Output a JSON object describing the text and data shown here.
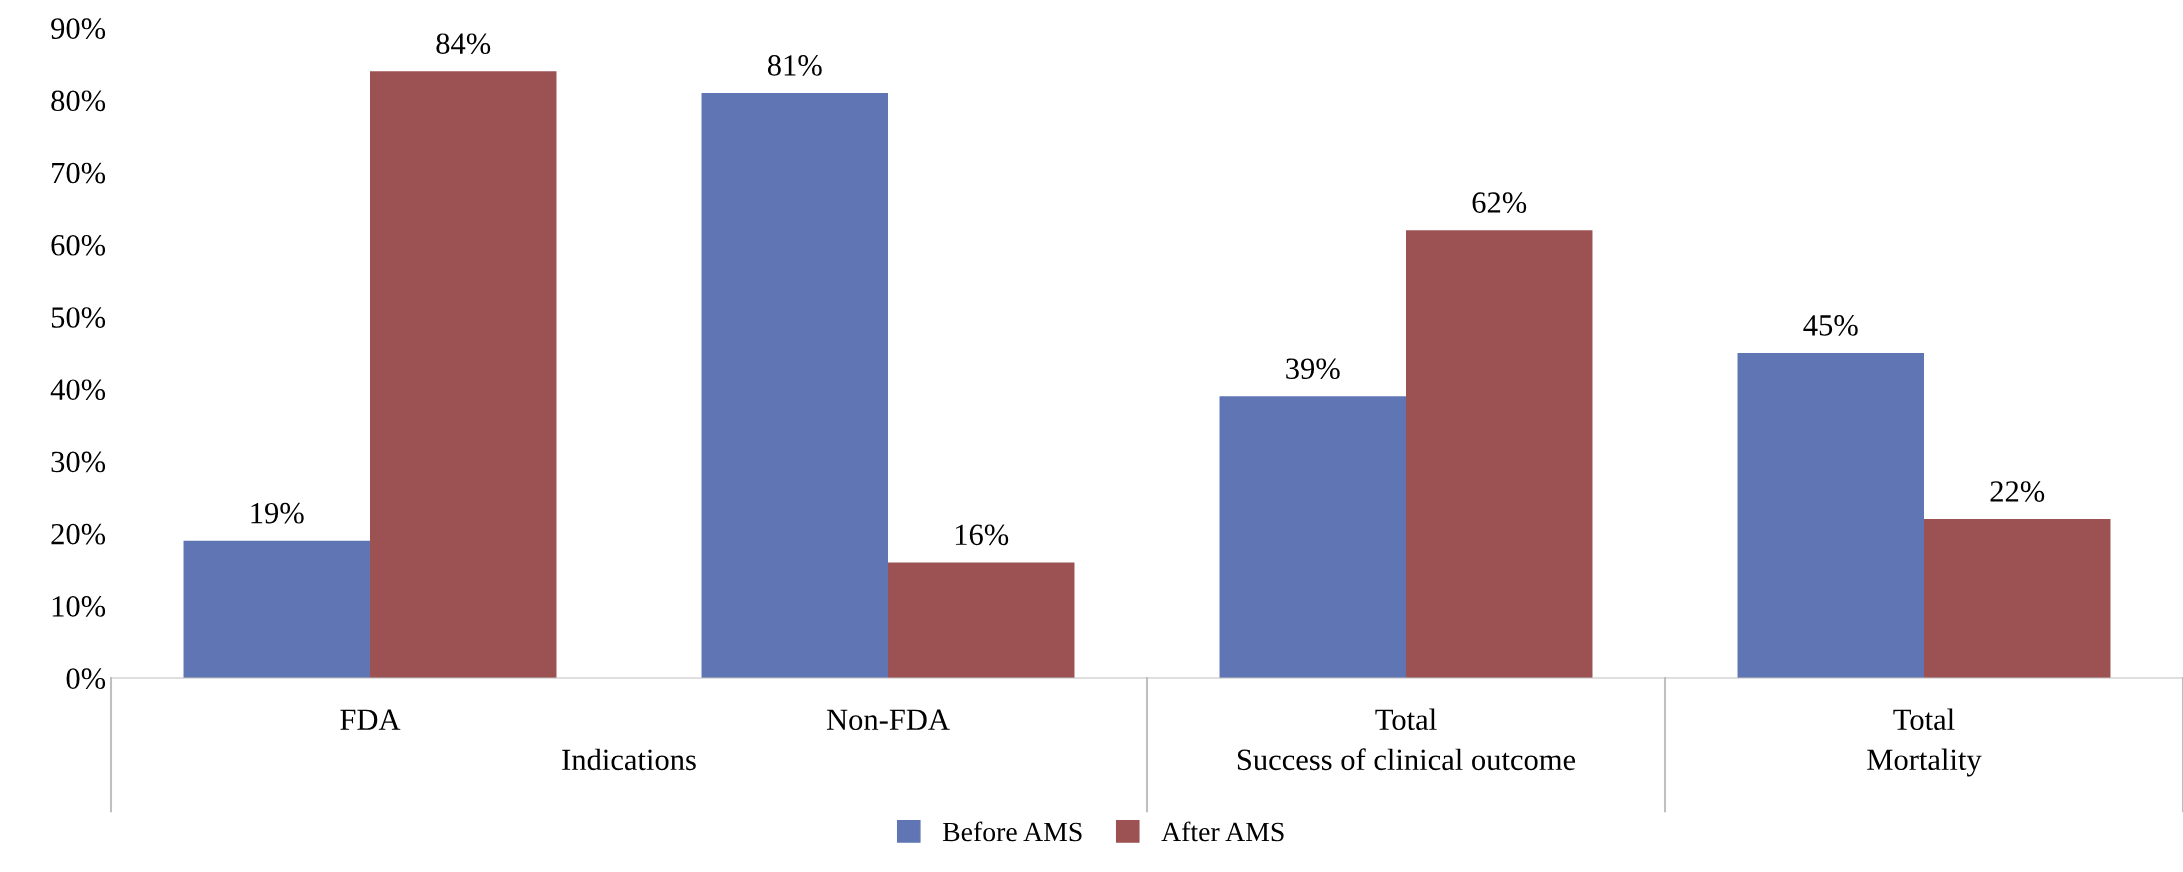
{
  "chart_data": {
    "type": "bar",
    "categories": [
      "FDA",
      "Non-FDA",
      "Total",
      "Total"
    ],
    "series": [
      {
        "name": "Before AMS",
        "color": "#6076b4",
        "values": [
          19,
          81,
          39,
          45
        ],
        "value_labels": [
          "19%",
          "81%",
          "39%",
          "45%"
        ]
      },
      {
        "name": "After AMS",
        "color": "#9c5252",
        "values": [
          84,
          16,
          62,
          22
        ],
        "value_labels": [
          "84%",
          "16%",
          "62%",
          "22%"
        ]
      }
    ],
    "annotations": [
      "Indications",
      "Success of clinical outcome",
      "Mortality"
    ],
    "ylim": [
      0,
      90
    ],
    "yticks": [
      {
        "value": 0,
        "label": "0%"
      },
      {
        "value": 10,
        "label": "10%"
      },
      {
        "value": 20,
        "label": "20%"
      },
      {
        "value": 30,
        "label": "30%"
      },
      {
        "value": 40,
        "label": "40%"
      },
      {
        "value": 50,
        "label": "50%"
      },
      {
        "value": 60,
        "label": "60%"
      },
      {
        "value": 70,
        "label": "70%"
      },
      {
        "value": 80,
        "label": "80%"
      },
      {
        "value": 90,
        "label": "90%"
      }
    ],
    "grid": false,
    "legend": "bottom"
  }
}
